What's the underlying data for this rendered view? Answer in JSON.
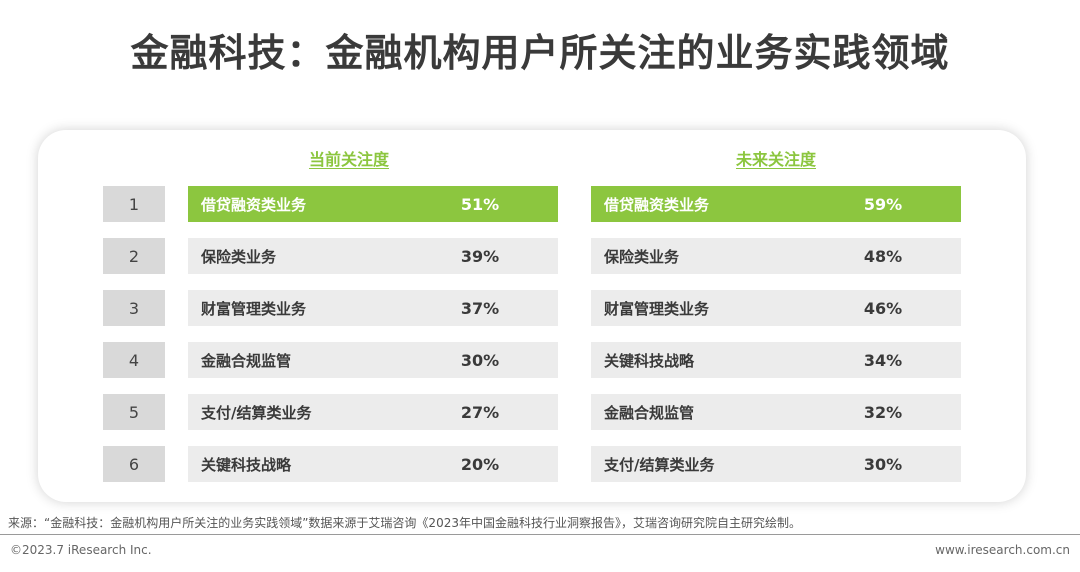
{
  "title": "金融科技：金融机构用户所关注的业务实践领域",
  "columns": {
    "current_label": "当前关注度",
    "future_label": "未来关注度"
  },
  "ranks": [
    "1",
    "2",
    "3",
    "4",
    "5",
    "6"
  ],
  "current": [
    {
      "label": "借贷融资类业务",
      "value": "51%"
    },
    {
      "label": "保险类业务",
      "value": "39%"
    },
    {
      "label": "财富管理类业务",
      "value": "37%"
    },
    {
      "label": "金融合规监管",
      "value": "30%"
    },
    {
      "label": "支付/结算类业务",
      "value": "27%"
    },
    {
      "label": "关键科技战略",
      "value": "20%"
    }
  ],
  "future": [
    {
      "label": "借贷融资类业务",
      "value": "59%"
    },
    {
      "label": "保险类业务",
      "value": "48%"
    },
    {
      "label": "财富管理类业务",
      "value": "46%"
    },
    {
      "label": "关键科技战略",
      "value": "34%"
    },
    {
      "label": "金融合规监管",
      "value": "32%"
    },
    {
      "label": "支付/结算类业务",
      "value": "30%"
    }
  ],
  "footer": {
    "source": "来源：“金融科技：金融机构用户所关注的业务实践领域”数据来源于艾瑞咨询《2023年中国金融科技行业洞察报告》，艾瑞咨询研究院自主研究绘制。",
    "copyright": "©2023.7 iResearch Inc.",
    "website": "www.iresearch.com.cn"
  },
  "colors": {
    "highlight": "#8cc63f",
    "cell_bg": "#ececec",
    "rank_bg": "#d9d9d9"
  }
}
